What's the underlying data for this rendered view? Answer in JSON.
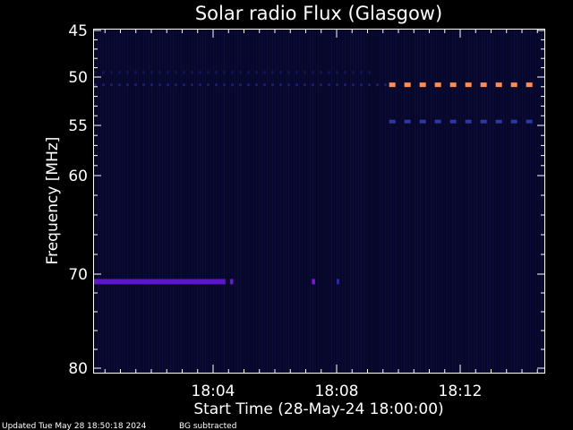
{
  "chart_data": {
    "type": "heatmap",
    "title": "Solar radio Flux (Glasgow)",
    "xlabel": "Start Time (28-May-24 18:00:00)",
    "ylabel": "Frequency [MHz]",
    "x_range_minutes": [
      0,
      14.8
    ],
    "y_range_mhz": [
      45,
      80
    ],
    "x_ticks": [
      {
        "minute": 4,
        "label": "18:04"
      },
      {
        "minute": 8,
        "label": "18:08"
      },
      {
        "minute": 12,
        "label": "18:12"
      }
    ],
    "y_ticks": [
      {
        "mhz": 45,
        "label": "45"
      },
      {
        "mhz": 50,
        "label": "50"
      },
      {
        "mhz": 55,
        "label": "55"
      },
      {
        "mhz": 60,
        "label": "60"
      },
      {
        "mhz": 70,
        "label": "70"
      },
      {
        "mhz": 80,
        "label": "80"
      }
    ],
    "y_minor_ticks": [
      46,
      47,
      48,
      49,
      51,
      52,
      53,
      54,
      56,
      57,
      58,
      59,
      62,
      64,
      66,
      68,
      72,
      74,
      76,
      78
    ],
    "x_minor_interval_minutes": 0.5,
    "grid": false,
    "emission_bands": [
      {
        "mhz": 50.8,
        "start": 9.7,
        "end": 14.8,
        "color": "#ff8c55",
        "pattern": "dashed",
        "intensity": "high"
      },
      {
        "mhz": 54.6,
        "start": 9.7,
        "end": 14.8,
        "color": "#2a3aa0",
        "pattern": "dashed",
        "intensity": "medium"
      },
      {
        "mhz": 50.8,
        "start": 0,
        "end": 9.6,
        "color": "#181c6a",
        "pattern": "dotted",
        "intensity": "low"
      },
      {
        "mhz": 49.5,
        "start": 0,
        "end": 9.2,
        "color": "#121450",
        "pattern": "dotted",
        "intensity": "low"
      },
      {
        "mhz": 70.8,
        "start": 0,
        "end": 4.4,
        "color": "#5a16c8",
        "pattern": "solid",
        "intensity": "medium"
      },
      {
        "mhz": 70.8,
        "start": 4.55,
        "end": 4.65,
        "color": "#6a18d4",
        "pattern": "solid",
        "intensity": "medium"
      },
      {
        "mhz": 70.8,
        "start": 7.2,
        "end": 7.3,
        "color": "#7a1ad8",
        "pattern": "solid",
        "intensity": "medium"
      },
      {
        "mhz": 70.8,
        "start": 8.0,
        "end": 8.05,
        "color": "#2a2aa0",
        "pattern": "solid",
        "intensity": "low"
      }
    ],
    "colors": {
      "background": "#000000",
      "plot_background": "#07072a",
      "foreground": "#ffffff"
    }
  },
  "footer": {
    "updated": "Updated Tue May 28 18:50:18 2024",
    "note": "BG subtracted"
  }
}
